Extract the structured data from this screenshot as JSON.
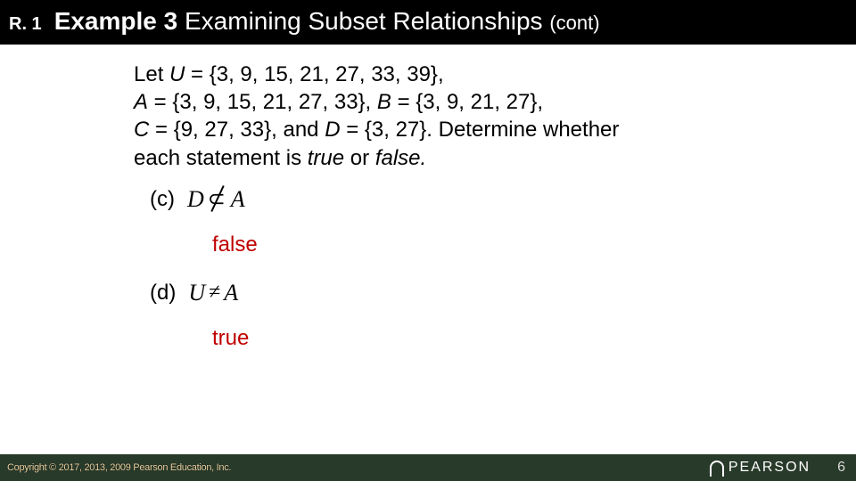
{
  "header": {
    "section": "R. 1",
    "example_label": "Example 3",
    "title": "Examining Subset Relationships",
    "cont": "(cont)"
  },
  "problem": {
    "line1_pre": "Let ",
    "line1_U": "U",
    "line1_post": " = {3, 9, 15, 21, 27, 33, 39},",
    "line2_A": "A",
    "line2_Apost": " = {3, 9, 15, 21, 27, 33}, ",
    "line2_B": "B",
    "line2_Bpost": " = {3, 9, 21, 27},",
    "line3_C": "C",
    "line3_Cpost": " = {9, 27, 33}, and ",
    "line3_D": "D",
    "line3_Dpost": " = {3, 27}. Determine whether",
    "line4_pre": "each statement is ",
    "line4_true": "true",
    "line4_or": " or ",
    "line4_false": "false."
  },
  "parts": {
    "c": {
      "label": "(c)",
      "left": "D",
      "right": "A",
      "answer": "false"
    },
    "d": {
      "label": "(d)",
      "left": "U",
      "right": "A",
      "answer": "true"
    }
  },
  "footer": {
    "copyright": "Copyright © 2017, 2013, 2009 Pearson Education, Inc.",
    "logo_text": "PEARSON",
    "page": "6"
  },
  "colors": {
    "header_bg": "#000000",
    "answer_color": "#c00000",
    "footer_bg": "#283a2a",
    "copyright_color": "#e8d0a0"
  }
}
